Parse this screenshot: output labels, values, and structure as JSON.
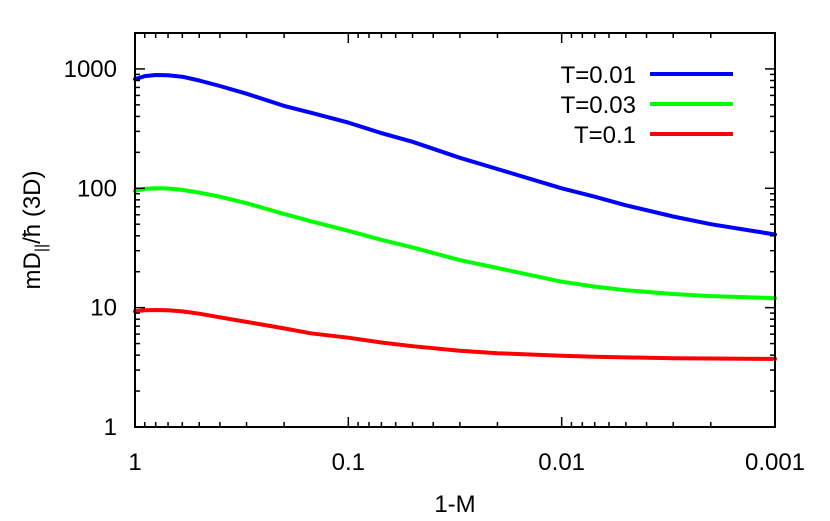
{
  "chart_data": {
    "type": "line",
    "xlabel": "1-M",
    "ylabel_main": "mD",
    "ylabel_sub": "||",
    "ylabel_rest": "/ħ (3D)",
    "x_scale": "log",
    "x_reversed": true,
    "y_scale": "log",
    "xlim": [
      1,
      0.001
    ],
    "ylim": [
      1,
      2000
    ],
    "grid": false,
    "legend_position": "top-right",
    "x_ticks": [
      {
        "value": 1,
        "label": "1"
      },
      {
        "value": 0.1,
        "label": "0.1"
      },
      {
        "value": 0.01,
        "label": "0.01"
      },
      {
        "value": 0.001,
        "label": "0.001"
      }
    ],
    "y_ticks": [
      {
        "value": 1,
        "label": "1"
      },
      {
        "value": 10,
        "label": "10"
      },
      {
        "value": 100,
        "label": "100"
      },
      {
        "value": 1000,
        "label": "1000"
      }
    ],
    "series": [
      {
        "name": "T=0.01",
        "color": "#0000ff",
        "x": [
          1,
          0.9,
          0.8,
          0.7,
          0.6,
          0.5,
          0.4,
          0.3,
          0.2,
          0.15,
          0.1,
          0.07,
          0.05,
          0.03,
          0.02,
          0.01,
          0.007,
          0.005,
          0.003,
          0.002,
          0.001
        ],
        "y": [
          820,
          870,
          890,
          885,
          860,
          800,
          720,
          620,
          490,
          430,
          355,
          290,
          245,
          180,
          145,
          100,
          85,
          72,
          58,
          50,
          41
        ]
      },
      {
        "name": "T=0.03",
        "color": "#00ff00",
        "x": [
          1,
          0.9,
          0.8,
          0.7,
          0.6,
          0.5,
          0.4,
          0.3,
          0.2,
          0.15,
          0.1,
          0.07,
          0.05,
          0.03,
          0.02,
          0.01,
          0.007,
          0.005,
          0.003,
          0.002,
          0.001
        ],
        "y": [
          95,
          99,
          100,
          99.5,
          97,
          92,
          85,
          75,
          61,
          53,
          44,
          37,
          32,
          25,
          21.5,
          16.5,
          15,
          14,
          13,
          12.5,
          12
        ]
      },
      {
        "name": "T=0.1",
        "color": "#ff0000",
        "x": [
          1,
          0.9,
          0.8,
          0.7,
          0.6,
          0.5,
          0.4,
          0.3,
          0.2,
          0.15,
          0.1,
          0.07,
          0.05,
          0.03,
          0.02,
          0.01,
          0.007,
          0.005,
          0.003,
          0.002,
          0.001
        ],
        "y": [
          9.3,
          9.5,
          9.55,
          9.5,
          9.3,
          8.9,
          8.3,
          7.6,
          6.7,
          6.1,
          5.6,
          5.1,
          4.75,
          4.35,
          4.15,
          3.95,
          3.88,
          3.83,
          3.77,
          3.75,
          3.72
        ]
      }
    ]
  }
}
